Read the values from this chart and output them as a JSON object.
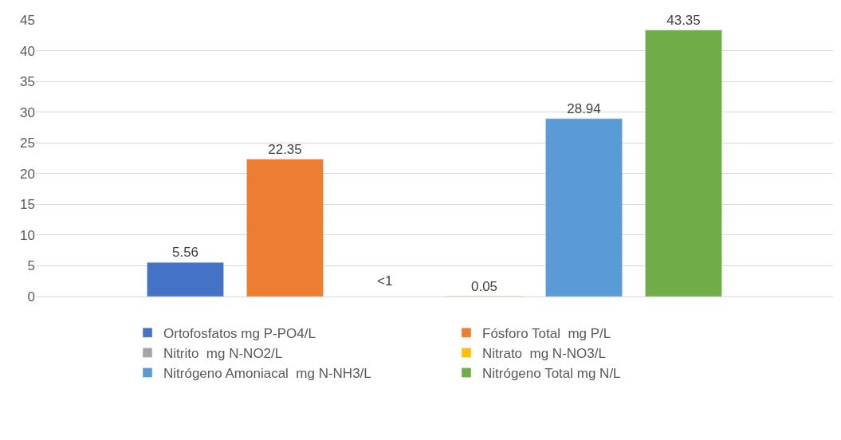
{
  "chart_data": {
    "type": "bar",
    "categories": [
      null
    ],
    "series": [
      {
        "name": "Ortofosfatos mg P-PO4/L",
        "color": "#4472c4",
        "values": [
          5.56
        ],
        "value_labels": [
          "5.56"
        ]
      },
      {
        "name": "Fósforo Total  mg P/L",
        "color": "#ed7d31",
        "values": [
          22.35
        ],
        "value_labels": [
          "22.35"
        ]
      },
      {
        "name": "Nitrito  mg N-NO2/L",
        "color": "#a5a5a5",
        "values": [
          null
        ],
        "value_labels": [
          "<1"
        ]
      },
      {
        "name": "Nitrato  mg N-NO3/L",
        "color": "#ffc000",
        "values": [
          0.05
        ],
        "value_labels": [
          "0.05"
        ]
      },
      {
        "name": "Nitrógeno Amoniacal  mg N-NH3/L",
        "color": "#5b9bd5",
        "values": [
          28.94
        ],
        "value_labels": [
          "28.94"
        ]
      },
      {
        "name": "Nitrógeno Total mg N/L",
        "color": "#70ad47",
        "values": [
          43.35
        ],
        "value_labels": [
          "43.35"
        ]
      }
    ],
    "ylim": [
      0,
      45
    ],
    "yticks": [
      0,
      5,
      10,
      15,
      20,
      25,
      30,
      35,
      40,
      45
    ],
    "grid": "y",
    "legend": "bottom"
  }
}
